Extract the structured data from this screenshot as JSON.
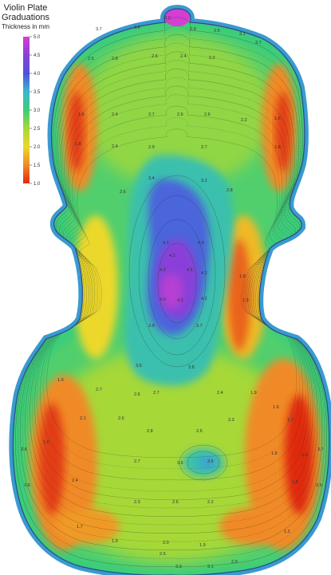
{
  "header": {
    "title_line1": "Violin Plate",
    "title_line2": "Graduations",
    "subtitle": "Thickness in mm"
  },
  "chart_data": {
    "type": "heatmap",
    "title": "Violin Plate Graduations",
    "subtitle": "Thickness in mm",
    "colorbar": {
      "ticks": [
        "5.0",
        "4.5",
        "4.0",
        "3.5",
        "3.0",
        "2.5",
        "2.0",
        "1.5",
        "1.0"
      ],
      "tick_values": [
        5.0,
        4.5,
        4.0,
        3.5,
        3.0,
        2.5,
        2.0,
        1.5,
        1.0
      ],
      "range": [
        1.0,
        5.0
      ],
      "stops": [
        {
          "value": 5.0,
          "color": "#d43fd0"
        },
        {
          "value": 4.5,
          "color": "#8a40d8"
        },
        {
          "value": 4.0,
          "color": "#5050dc"
        },
        {
          "value": 3.5,
          "color": "#3ab8d0"
        },
        {
          "value": 3.0,
          "color": "#3ccd7a"
        },
        {
          "value": 2.5,
          "color": "#a6d838"
        },
        {
          "value": 2.0,
          "color": "#ecd82a"
        },
        {
          "value": 1.5,
          "color": "#f08a26"
        },
        {
          "value": 1.0,
          "color": "#e02a10"
        }
      ]
    },
    "contour_labels": [
      {
        "text": "3.7"
      },
      {
        "text": "3.6"
      },
      {
        "text": "3.0"
      },
      {
        "text": "2.9"
      },
      {
        "text": "2.6"
      },
      {
        "text": "3.1"
      },
      {
        "text": "3.7"
      },
      {
        "text": "2.5"
      },
      {
        "text": "2.8"
      },
      {
        "text": "2.6"
      },
      {
        "text": "2.4"
      },
      {
        "text": "2.2"
      },
      {
        "text": "1.6"
      },
      {
        "text": "2.4"
      },
      {
        "text": "2.7"
      },
      {
        "text": "2.6"
      },
      {
        "text": "2.6"
      },
      {
        "text": "2.2"
      },
      {
        "text": "1.6"
      },
      {
        "text": "1.8"
      },
      {
        "text": "2.4"
      },
      {
        "text": "2.9"
      },
      {
        "text": "2.7"
      },
      {
        "text": "1.8"
      },
      {
        "text": "3.4"
      },
      {
        "text": "3.2"
      },
      {
        "text": "2.6"
      },
      {
        "text": "2.8"
      },
      {
        "text": "4.1"
      },
      {
        "text": "4.4"
      },
      {
        "text": "4.3"
      },
      {
        "text": "4.2"
      },
      {
        "text": "4.6"
      },
      {
        "text": "4.2"
      },
      {
        "text": "1.8"
      },
      {
        "text": "4.0"
      },
      {
        "text": "4.3"
      },
      {
        "text": "4.2"
      },
      {
        "text": "1.9"
      },
      {
        "text": "3.9"
      },
      {
        "text": "3.7"
      },
      {
        "text": "3.6"
      },
      {
        "text": "3.8"
      },
      {
        "text": "2.7"
      },
      {
        "text": "2.6"
      },
      {
        "text": "2.7"
      },
      {
        "text": "2.4"
      },
      {
        "text": "1.9"
      },
      {
        "text": "1.9"
      },
      {
        "text": "2.1"
      },
      {
        "text": "2.6"
      },
      {
        "text": "2.8"
      },
      {
        "text": "2.6"
      },
      {
        "text": "2.3"
      },
      {
        "text": "1.6"
      },
      {
        "text": "1.7"
      },
      {
        "text": "1.6"
      },
      {
        "text": "2.7"
      },
      {
        "text": "3.6"
      },
      {
        "text": "3.5"
      },
      {
        "text": "1.8"
      },
      {
        "text": "1.3"
      },
      {
        "text": "2.4"
      },
      {
        "text": "2.3"
      },
      {
        "text": "2.6"
      },
      {
        "text": "2.2"
      },
      {
        "text": "1.6"
      },
      {
        "text": "1.7"
      },
      {
        "text": "1.9"
      },
      {
        "text": "2.0"
      },
      {
        "text": "1.9"
      },
      {
        "text": "1.2"
      },
      {
        "text": "2.6"
      },
      {
        "text": "3.3"
      },
      {
        "text": "3.1"
      },
      {
        "text": "2.9"
      },
      {
        "text": "3.6"
      },
      {
        "text": "3.6"
      },
      {
        "text": "3.7"
      },
      {
        "text": "3.5"
      }
    ]
  },
  "colors": {
    "outline": "#2a4a8a",
    "edge": "#3a9ad0",
    "purfling": "#38b8c8"
  }
}
